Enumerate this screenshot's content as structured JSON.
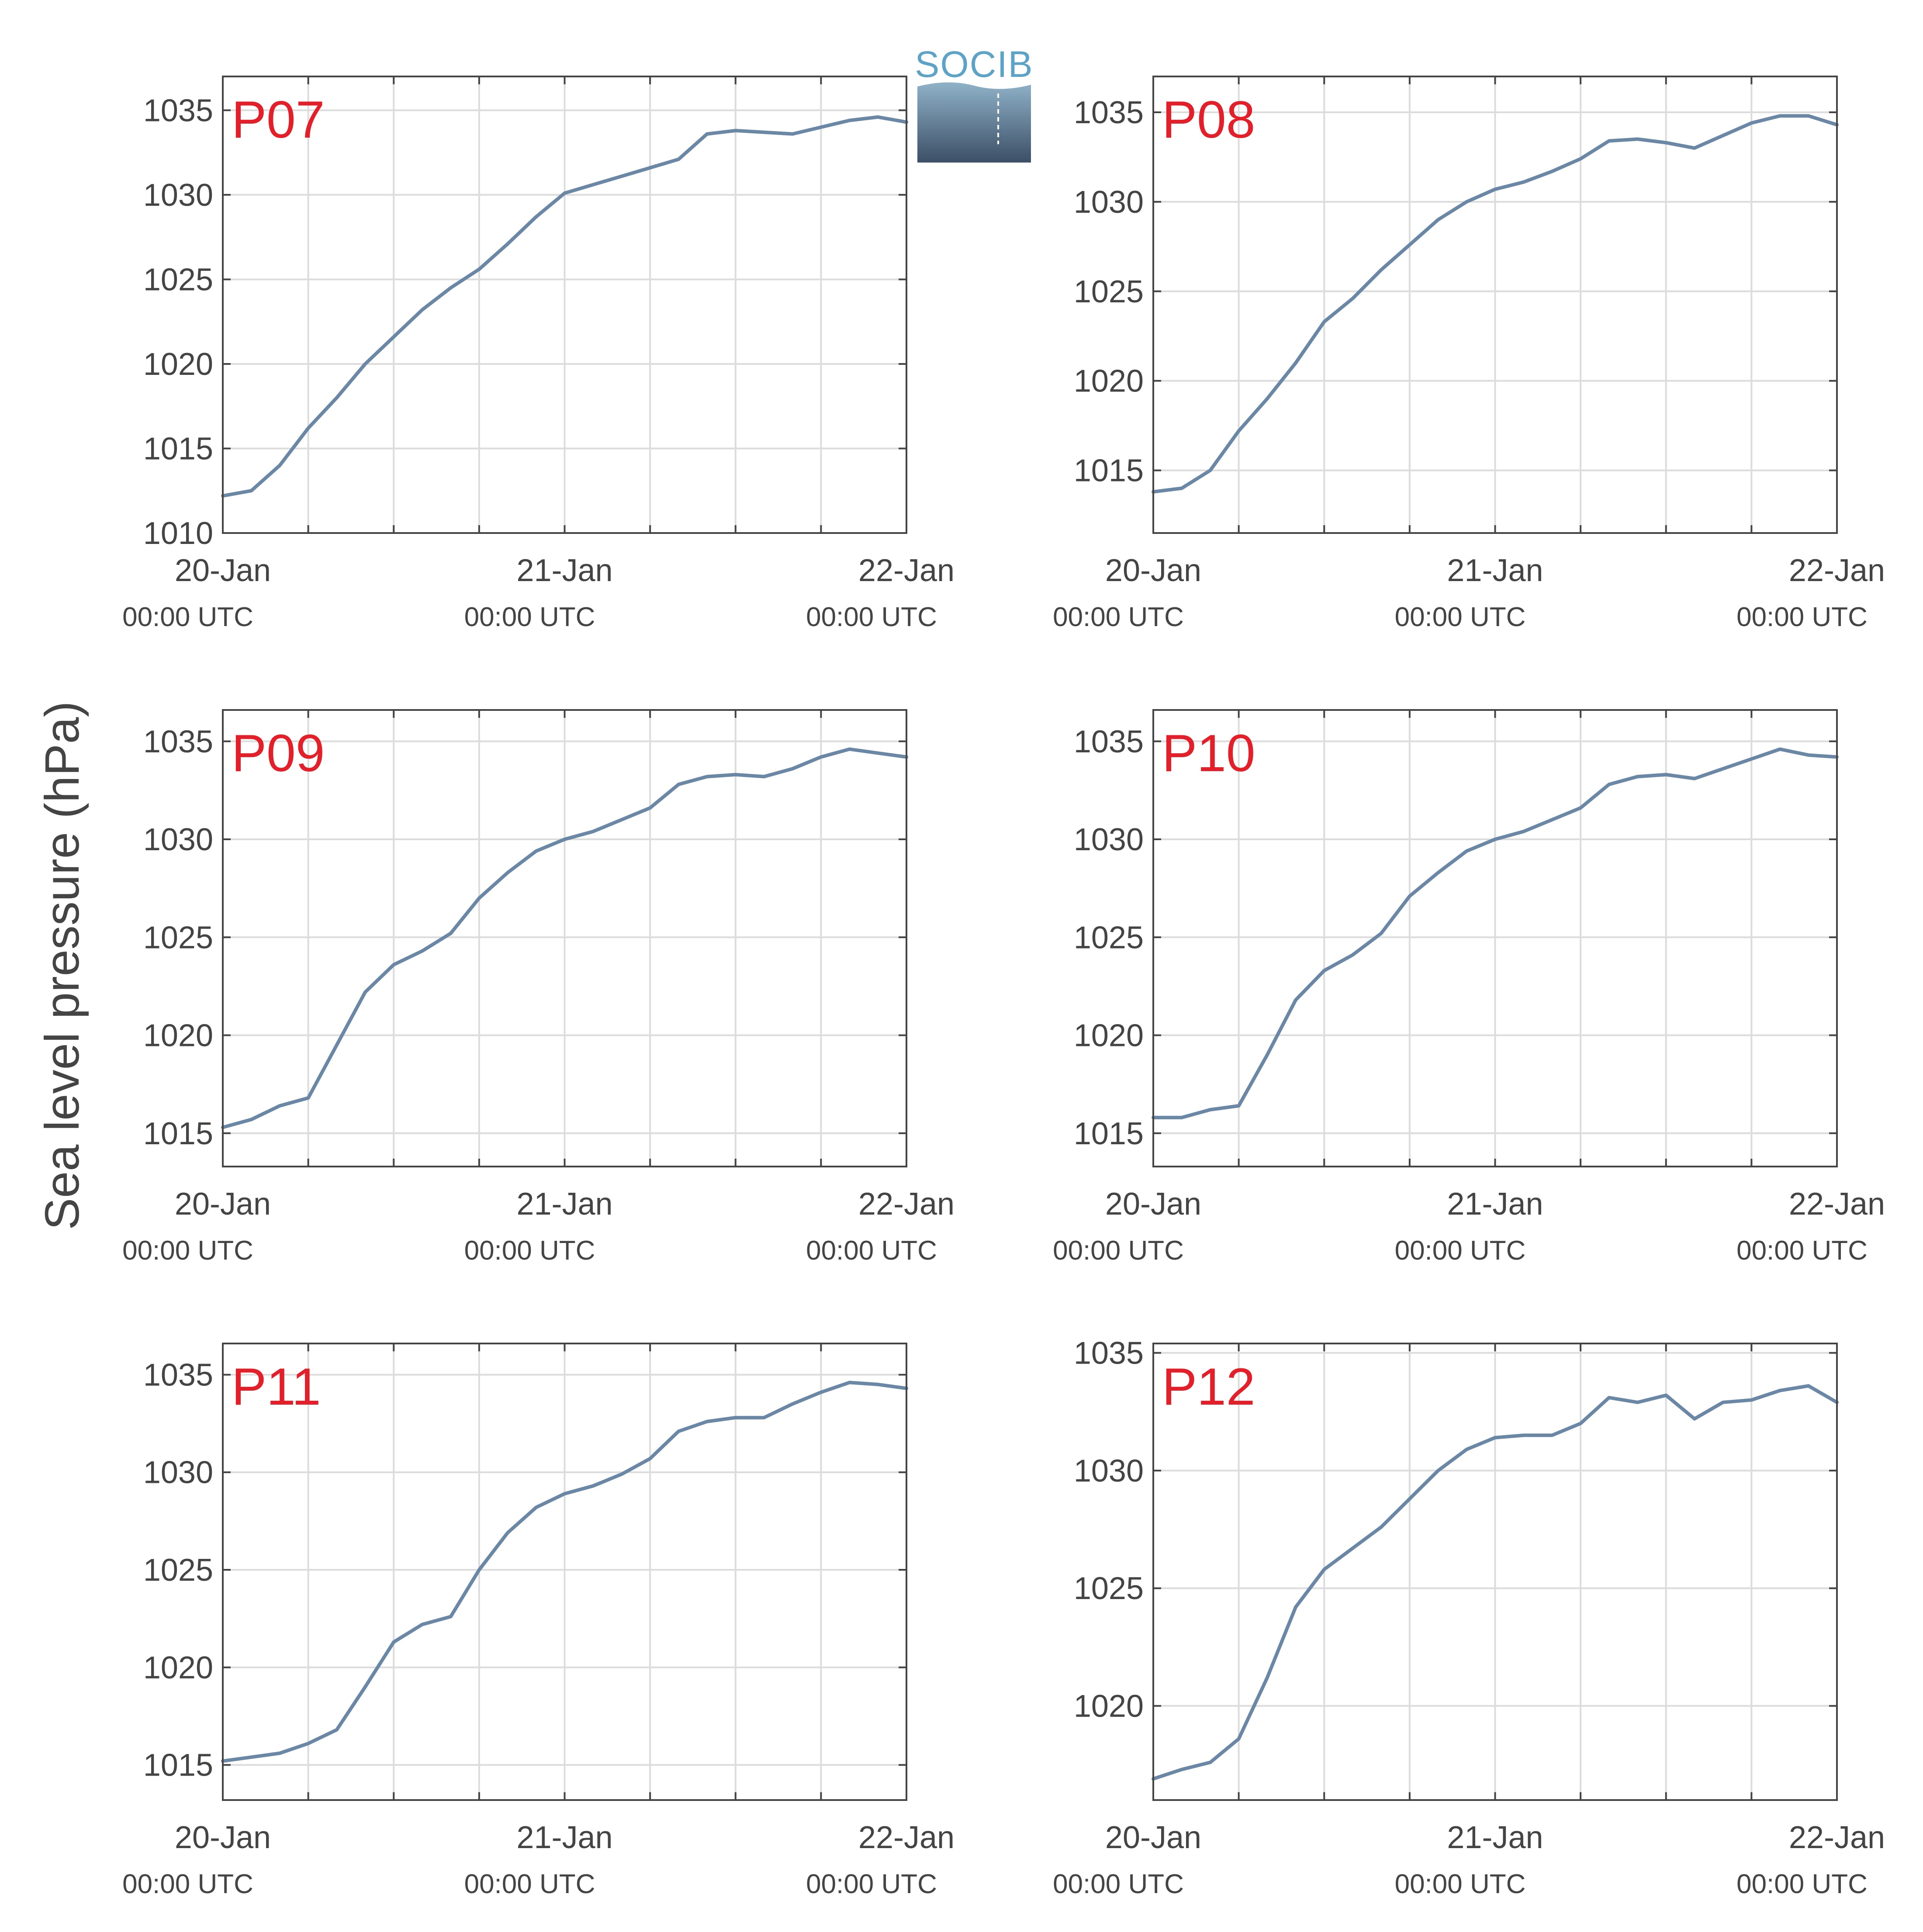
{
  "figure": {
    "ylabel": "Sea level pressure (hPa)",
    "logo_text": "SOCIB",
    "colors": {
      "series": "#6b87a6",
      "panel_title": "#e3202a",
      "axis": "#444444",
      "grid": "#dcdcdc"
    }
  },
  "chart_data": [
    {
      "type": "line",
      "title": "P07",
      "x_ticks": [
        "20-Jan",
        "21-Jan",
        "22-Jan"
      ],
      "x_tick_sublabel": "00:00 UTC",
      "x_range_hours": [
        0,
        48
      ],
      "ylim": [
        1010,
        1037
      ],
      "yticks": [
        1010,
        1015,
        1020,
        1025,
        1030,
        1035
      ],
      "series": [
        {
          "x": [
            0,
            2,
            4,
            6,
            8,
            10,
            12,
            14,
            16,
            18,
            20,
            22,
            24,
            26,
            28,
            30,
            32,
            34,
            36,
            38,
            40,
            42,
            44,
            46,
            48
          ],
          "y": [
            1012.2,
            1012.5,
            1014.0,
            1016.2,
            1018.0,
            1020.0,
            1021.6,
            1023.2,
            1024.5,
            1025.6,
            1027.1,
            1028.7,
            1030.1,
            1030.6,
            1031.1,
            1031.6,
            1032.1,
            1033.6,
            1033.8,
            1033.7,
            1033.6,
            1034.0,
            1034.4,
            1034.6,
            1034.3
          ]
        }
      ]
    },
    {
      "type": "line",
      "title": "P08",
      "x_ticks": [
        "20-Jan",
        "21-Jan",
        "22-Jan"
      ],
      "x_tick_sublabel": "00:00 UTC",
      "x_range_hours": [
        0,
        48
      ],
      "ylim": [
        1011.5,
        1037
      ],
      "yticks": [
        1015,
        1020,
        1025,
        1030,
        1035
      ],
      "series": [
        {
          "x": [
            0,
            2,
            4,
            6,
            8,
            10,
            12,
            14,
            16,
            18,
            20,
            22,
            24,
            26,
            28,
            30,
            32,
            34,
            36,
            38,
            40,
            42,
            44,
            46,
            48
          ],
          "y": [
            1013.8,
            1014.0,
            1015.0,
            1017.2,
            1019.0,
            1021.0,
            1023.3,
            1024.6,
            1026.2,
            1027.6,
            1029.0,
            1030.0,
            1030.7,
            1031.1,
            1031.7,
            1032.4,
            1033.4,
            1033.5,
            1033.3,
            1033.0,
            1033.7,
            1034.4,
            1034.8,
            1034.8,
            1034.3
          ]
        }
      ]
    },
    {
      "type": "line",
      "title": "P09",
      "x_ticks": [
        "20-Jan",
        "21-Jan",
        "22-Jan"
      ],
      "x_tick_sublabel": "00:00 UTC",
      "x_range_hours": [
        0,
        48
      ],
      "ylim": [
        1013.3,
        1036.6
      ],
      "yticks": [
        1015,
        1020,
        1025,
        1030,
        1035
      ],
      "series": [
        {
          "x": [
            0,
            2,
            4,
            6,
            8,
            10,
            12,
            14,
            16,
            18,
            20,
            22,
            24,
            26,
            28,
            30,
            32,
            34,
            36,
            38,
            40,
            42,
            44,
            46,
            48
          ],
          "y": [
            1015.3,
            1015.7,
            1016.4,
            1016.8,
            1019.5,
            1022.2,
            1023.6,
            1024.3,
            1025.2,
            1027.0,
            1028.3,
            1029.4,
            1030.0,
            1030.4,
            1031.0,
            1031.6,
            1032.8,
            1033.2,
            1033.3,
            1033.2,
            1033.6,
            1034.2,
            1034.6,
            1034.4,
            1034.2
          ]
        }
      ]
    },
    {
      "type": "line",
      "title": "P10",
      "x_ticks": [
        "20-Jan",
        "21-Jan",
        "22-Jan"
      ],
      "x_tick_sublabel": "00:00 UTC",
      "x_range_hours": [
        0,
        48
      ],
      "ylim": [
        1013.3,
        1036.6
      ],
      "yticks": [
        1015,
        1020,
        1025,
        1030,
        1035
      ],
      "series": [
        {
          "x": [
            0,
            2,
            4,
            6,
            8,
            10,
            12,
            14,
            16,
            18,
            20,
            22,
            24,
            26,
            28,
            30,
            32,
            34,
            36,
            38,
            40,
            42,
            44,
            46,
            48
          ],
          "y": [
            1015.8,
            1015.8,
            1016.2,
            1016.4,
            1019.0,
            1021.8,
            1023.3,
            1024.1,
            1025.2,
            1027.1,
            1028.3,
            1029.4,
            1030.0,
            1030.4,
            1031.0,
            1031.6,
            1032.8,
            1033.2,
            1033.3,
            1033.1,
            1033.6,
            1034.1,
            1034.6,
            1034.3,
            1034.2
          ]
        }
      ]
    },
    {
      "type": "line",
      "title": "P11",
      "x_ticks": [
        "20-Jan",
        "21-Jan",
        "22-Jan"
      ],
      "x_tick_sublabel": "00:00 UTC",
      "x_range_hours": [
        0,
        48
      ],
      "ylim": [
        1013.2,
        1036.6
      ],
      "yticks": [
        1015,
        1020,
        1025,
        1030,
        1035
      ],
      "series": [
        {
          "x": [
            0,
            2,
            4,
            6,
            8,
            10,
            12,
            14,
            16,
            18,
            20,
            22,
            24,
            26,
            28,
            30,
            32,
            34,
            36,
            38,
            40,
            42,
            44,
            46,
            48
          ],
          "y": [
            1015.2,
            1015.4,
            1015.6,
            1016.1,
            1016.8,
            1019.0,
            1021.3,
            1022.2,
            1022.6,
            1025.0,
            1026.9,
            1028.2,
            1028.9,
            1029.3,
            1029.9,
            1030.7,
            1032.1,
            1032.6,
            1032.8,
            1032.8,
            1033.5,
            1034.1,
            1034.6,
            1034.5,
            1034.3
          ]
        }
      ]
    },
    {
      "type": "line",
      "title": "P12",
      "x_ticks": [
        "20-Jan",
        "21-Jan",
        "22-Jan"
      ],
      "x_tick_sublabel": "00:00 UTC",
      "x_range_hours": [
        0,
        48
      ],
      "ylim": [
        1016.0,
        1035.4
      ],
      "yticks": [
        1020,
        1025,
        1030,
        1035
      ],
      "series": [
        {
          "x": [
            0,
            2,
            4,
            6,
            8,
            10,
            12,
            14,
            16,
            18,
            20,
            22,
            24,
            26,
            28,
            30,
            32,
            34,
            36,
            38,
            40,
            42,
            44,
            46,
            48
          ],
          "y": [
            1016.9,
            1017.3,
            1017.6,
            1018.6,
            1021.2,
            1024.2,
            1025.8,
            1026.7,
            1027.6,
            1028.8,
            1030.0,
            1030.9,
            1031.4,
            1031.5,
            1031.5,
            1032.0,
            1033.1,
            1032.9,
            1033.2,
            1032.2,
            1032.9,
            1033.0,
            1033.4,
            1033.6,
            1032.9
          ]
        }
      ]
    }
  ]
}
